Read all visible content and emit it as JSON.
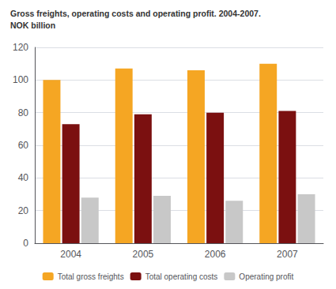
{
  "chart_data": {
    "type": "bar",
    "title": "Gross freights, operating costs and operating profit. 2004-2007.",
    "subtitle": "NOK billion",
    "categories": [
      "2004",
      "2005",
      "2006",
      "2007"
    ],
    "series": [
      {
        "name": "Total gross freights",
        "color": "#F5A623",
        "values": [
          100,
          107,
          106,
          110
        ]
      },
      {
        "name": "Total operating costs",
        "color": "#7B1010",
        "values": [
          73,
          79,
          80,
          81
        ]
      },
      {
        "name": "Operating profit",
        "color": "#C8C8C8",
        "values": [
          28,
          29,
          26,
          30
        ]
      }
    ],
    "ylim": [
      0,
      120
    ],
    "yticks": [
      0,
      20,
      40,
      60,
      80,
      100,
      120
    ],
    "grid": true,
    "legend": "bottom"
  }
}
